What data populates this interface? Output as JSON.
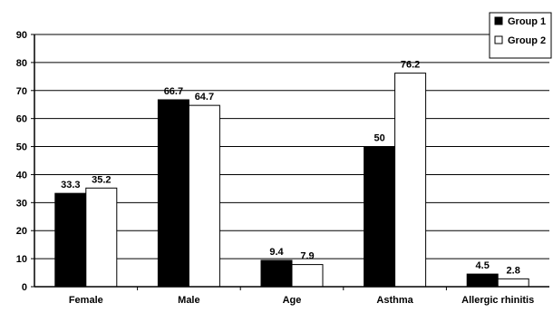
{
  "chart_data": {
    "type": "bar",
    "categories": [
      "Female",
      "Male",
      "Age",
      "Asthma",
      "Allergic rhinitis"
    ],
    "series": [
      {
        "name": "Group 1",
        "values": [
          33.3,
          66.7,
          9.4,
          50,
          4.5
        ],
        "labels": [
          "33.3",
          "66.7",
          "9.4",
          "50",
          "4.5"
        ],
        "color": "#000000"
      },
      {
        "name": "Group 2",
        "values": [
          35.2,
          64.7,
          7.9,
          76.2,
          2.8
        ],
        "labels": [
          "35.2",
          "64.7",
          "7.9",
          "76.2",
          "2.8"
        ],
        "color": "#ffffff"
      }
    ],
    "ylim": [
      0,
      90
    ],
    "yticks": [
      0,
      10,
      20,
      30,
      40,
      50,
      60,
      70,
      80,
      90
    ],
    "grid": true,
    "legend": "top-right",
    "title": "",
    "xlabel": "",
    "ylabel": ""
  }
}
